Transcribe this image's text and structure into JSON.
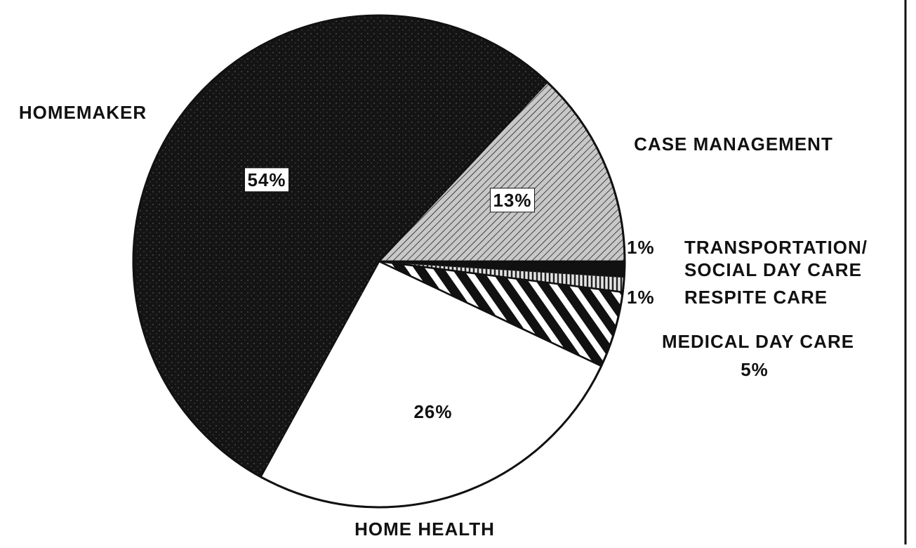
{
  "chart_data": {
    "type": "pie",
    "categories": [
      "CASE MANAGEMENT",
      "TRANSPORTATION/ SOCIAL DAY CARE",
      "RESPITE CARE",
      "MEDICAL DAY CARE",
      "HOME HEALTH",
      "HOMEMAKER"
    ],
    "values": [
      13,
      1,
      1,
      5,
      26,
      54
    ],
    "value_labels": [
      "13%",
      "1%",
      "1%",
      "5%",
      "26%",
      "54%"
    ],
    "colors": [
      "#c8c8c8",
      "#111111",
      "#e6e6e6",
      "#ffffff",
      "#ffffff",
      "#141414"
    ]
  }
}
